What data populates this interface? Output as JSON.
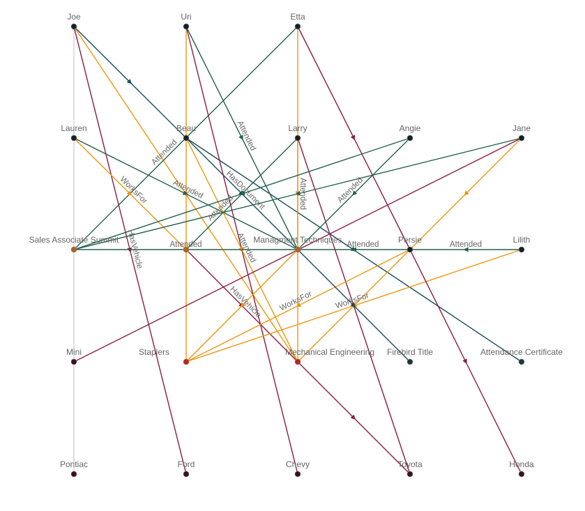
{
  "colors": {
    "attended": "#24614a",
    "has_document": "#174a5a",
    "works_for": "#f0960f",
    "has_vehicle": "#8b1a45",
    "neutral": "#c9b9c2",
    "person_node": "#15202b",
    "event_node": "#b5601f",
    "org_node": "#c0211f",
    "vehicle_node": "#3d0f22",
    "document_node": "#1a3a36"
  },
  "nodes": [
    {
      "id": "joe",
      "label": "Joe",
      "type": "person"
    },
    {
      "id": "uri",
      "label": "Uri",
      "type": "person"
    },
    {
      "id": "etta",
      "label": "Etta",
      "type": "person"
    },
    {
      "id": "lauren",
      "label": "Lauren",
      "type": "person"
    },
    {
      "id": "beau",
      "label": "Beau",
      "type": "person"
    },
    {
      "id": "larry",
      "label": "Larry",
      "type": "person"
    },
    {
      "id": "angie",
      "label": "Angie",
      "type": "person"
    },
    {
      "id": "jane",
      "label": "Jane",
      "type": "person"
    },
    {
      "id": "summit",
      "label": "Sales Associate Summit",
      "type": "event"
    },
    {
      "id": "unlabeled",
      "label": "",
      "type": "event"
    },
    {
      "id": "mgmt",
      "label": "Managment Techniques",
      "type": "event"
    },
    {
      "id": "persie",
      "label": "Persie",
      "type": "person"
    },
    {
      "id": "lilith",
      "label": "Lilith",
      "type": "person"
    },
    {
      "id": "mini",
      "label": "Mini",
      "type": "vehicle"
    },
    {
      "id": "staplers",
      "label": "Staplers",
      "type": "org"
    },
    {
      "id": "mecheng",
      "label": "Mechanical Engineering",
      "type": "org"
    },
    {
      "id": "firebird",
      "label": "Firebird Title",
      "type": "document"
    },
    {
      "id": "cert",
      "label": "Attendance Certificate",
      "type": "document"
    },
    {
      "id": "pontiac",
      "label": "Pontiac",
      "type": "vehicle"
    },
    {
      "id": "ford",
      "label": "Ford",
      "type": "vehicle"
    },
    {
      "id": "chevy",
      "label": "Chevy",
      "type": "vehicle"
    },
    {
      "id": "toyota",
      "label": "Toyota",
      "type": "vehicle"
    },
    {
      "id": "honda",
      "label": "Honda",
      "type": "vehicle"
    }
  ],
  "edges": [
    {
      "from": "joe",
      "to": "pontiac",
      "label": "",
      "kind": "neutral"
    },
    {
      "from": "joe",
      "to": "beau",
      "label": "",
      "kind": "has_document"
    },
    {
      "from": "beau",
      "to": "mgmt",
      "label": "HasDocument",
      "kind": "has_document"
    },
    {
      "from": "joe",
      "to": "ford",
      "label": "HasVehicle",
      "kind": "has_vehicle"
    },
    {
      "from": "joe",
      "to": "mecheng",
      "label": "",
      "kind": "works_for"
    },
    {
      "from": "uri",
      "to": "staplers",
      "label": "",
      "kind": "works_for"
    },
    {
      "from": "uri",
      "to": "chevy",
      "label": "",
      "kind": "has_vehicle"
    },
    {
      "from": "uri",
      "to": "mgmt",
      "label": "Attended",
      "kind": "attended"
    },
    {
      "from": "etta",
      "to": "summit",
      "label": "Attended",
      "kind": "attended"
    },
    {
      "from": "etta",
      "to": "mecheng",
      "label": "",
      "kind": "works_for"
    },
    {
      "from": "etta",
      "to": "persie",
      "label": "",
      "kind": "has_vehicle"
    },
    {
      "from": "lauren",
      "to": "mgmt",
      "label": "Attended",
      "kind": "attended"
    },
    {
      "from": "lauren",
      "to": "unlabeled",
      "label": "WorksFor",
      "kind": "works_for"
    },
    {
      "from": "unlabeled",
      "to": "mecheng",
      "label": "HasVehicle",
      "kind": "has_vehicle"
    },
    {
      "from": "beau",
      "to": "mecheng",
      "label": "Attended",
      "kind": "works_for"
    },
    {
      "from": "beau",
      "to": "cert",
      "label": "",
      "kind": "has_document"
    },
    {
      "from": "larry",
      "to": "unlabeled",
      "label": "Attended",
      "kind": "attended"
    },
    {
      "from": "larry",
      "to": "mgmt",
      "label": "Attended",
      "kind": "works_for"
    },
    {
      "from": "larry",
      "to": "toyota",
      "label": "",
      "kind": "has_vehicle"
    },
    {
      "from": "angie",
      "to": "mgmt",
      "label": "Attended",
      "kind": "attended"
    },
    {
      "from": "angie",
      "to": "summit",
      "label": "",
      "kind": "attended"
    },
    {
      "from": "jane",
      "to": "summit",
      "label": "",
      "kind": "attended"
    },
    {
      "from": "jane",
      "to": "mini",
      "label": "",
      "kind": "has_vehicle"
    },
    {
      "from": "jane",
      "to": "persie",
      "label": "",
      "kind": "works_for"
    },
    {
      "from": "mgmt",
      "to": "summit",
      "label": "Attended",
      "kind": "attended"
    },
    {
      "from": "persie",
      "to": "mgmt",
      "label": "Attended",
      "kind": "attended"
    },
    {
      "from": "lilith",
      "to": "persie",
      "label": "Attended",
      "kind": "attended"
    },
    {
      "from": "persie",
      "to": "staplers",
      "label": "WorksFor",
      "kind": "works_for"
    },
    {
      "from": "persie",
      "to": "mecheng",
      "label": "",
      "kind": "works_for"
    },
    {
      "from": "lilith",
      "to": "staplers",
      "label": "WorksFor",
      "kind": "works_for"
    },
    {
      "from": "persie",
      "to": "honda",
      "label": "",
      "kind": "has_vehicle"
    },
    {
      "from": "mgmt",
      "to": "firebird",
      "label": "",
      "kind": "has_document"
    },
    {
      "from": "mgmt",
      "to": "staplers",
      "label": "",
      "kind": "works_for"
    },
    {
      "from": "mecheng",
      "to": "toyota",
      "label": "",
      "kind": "has_vehicle"
    }
  ]
}
